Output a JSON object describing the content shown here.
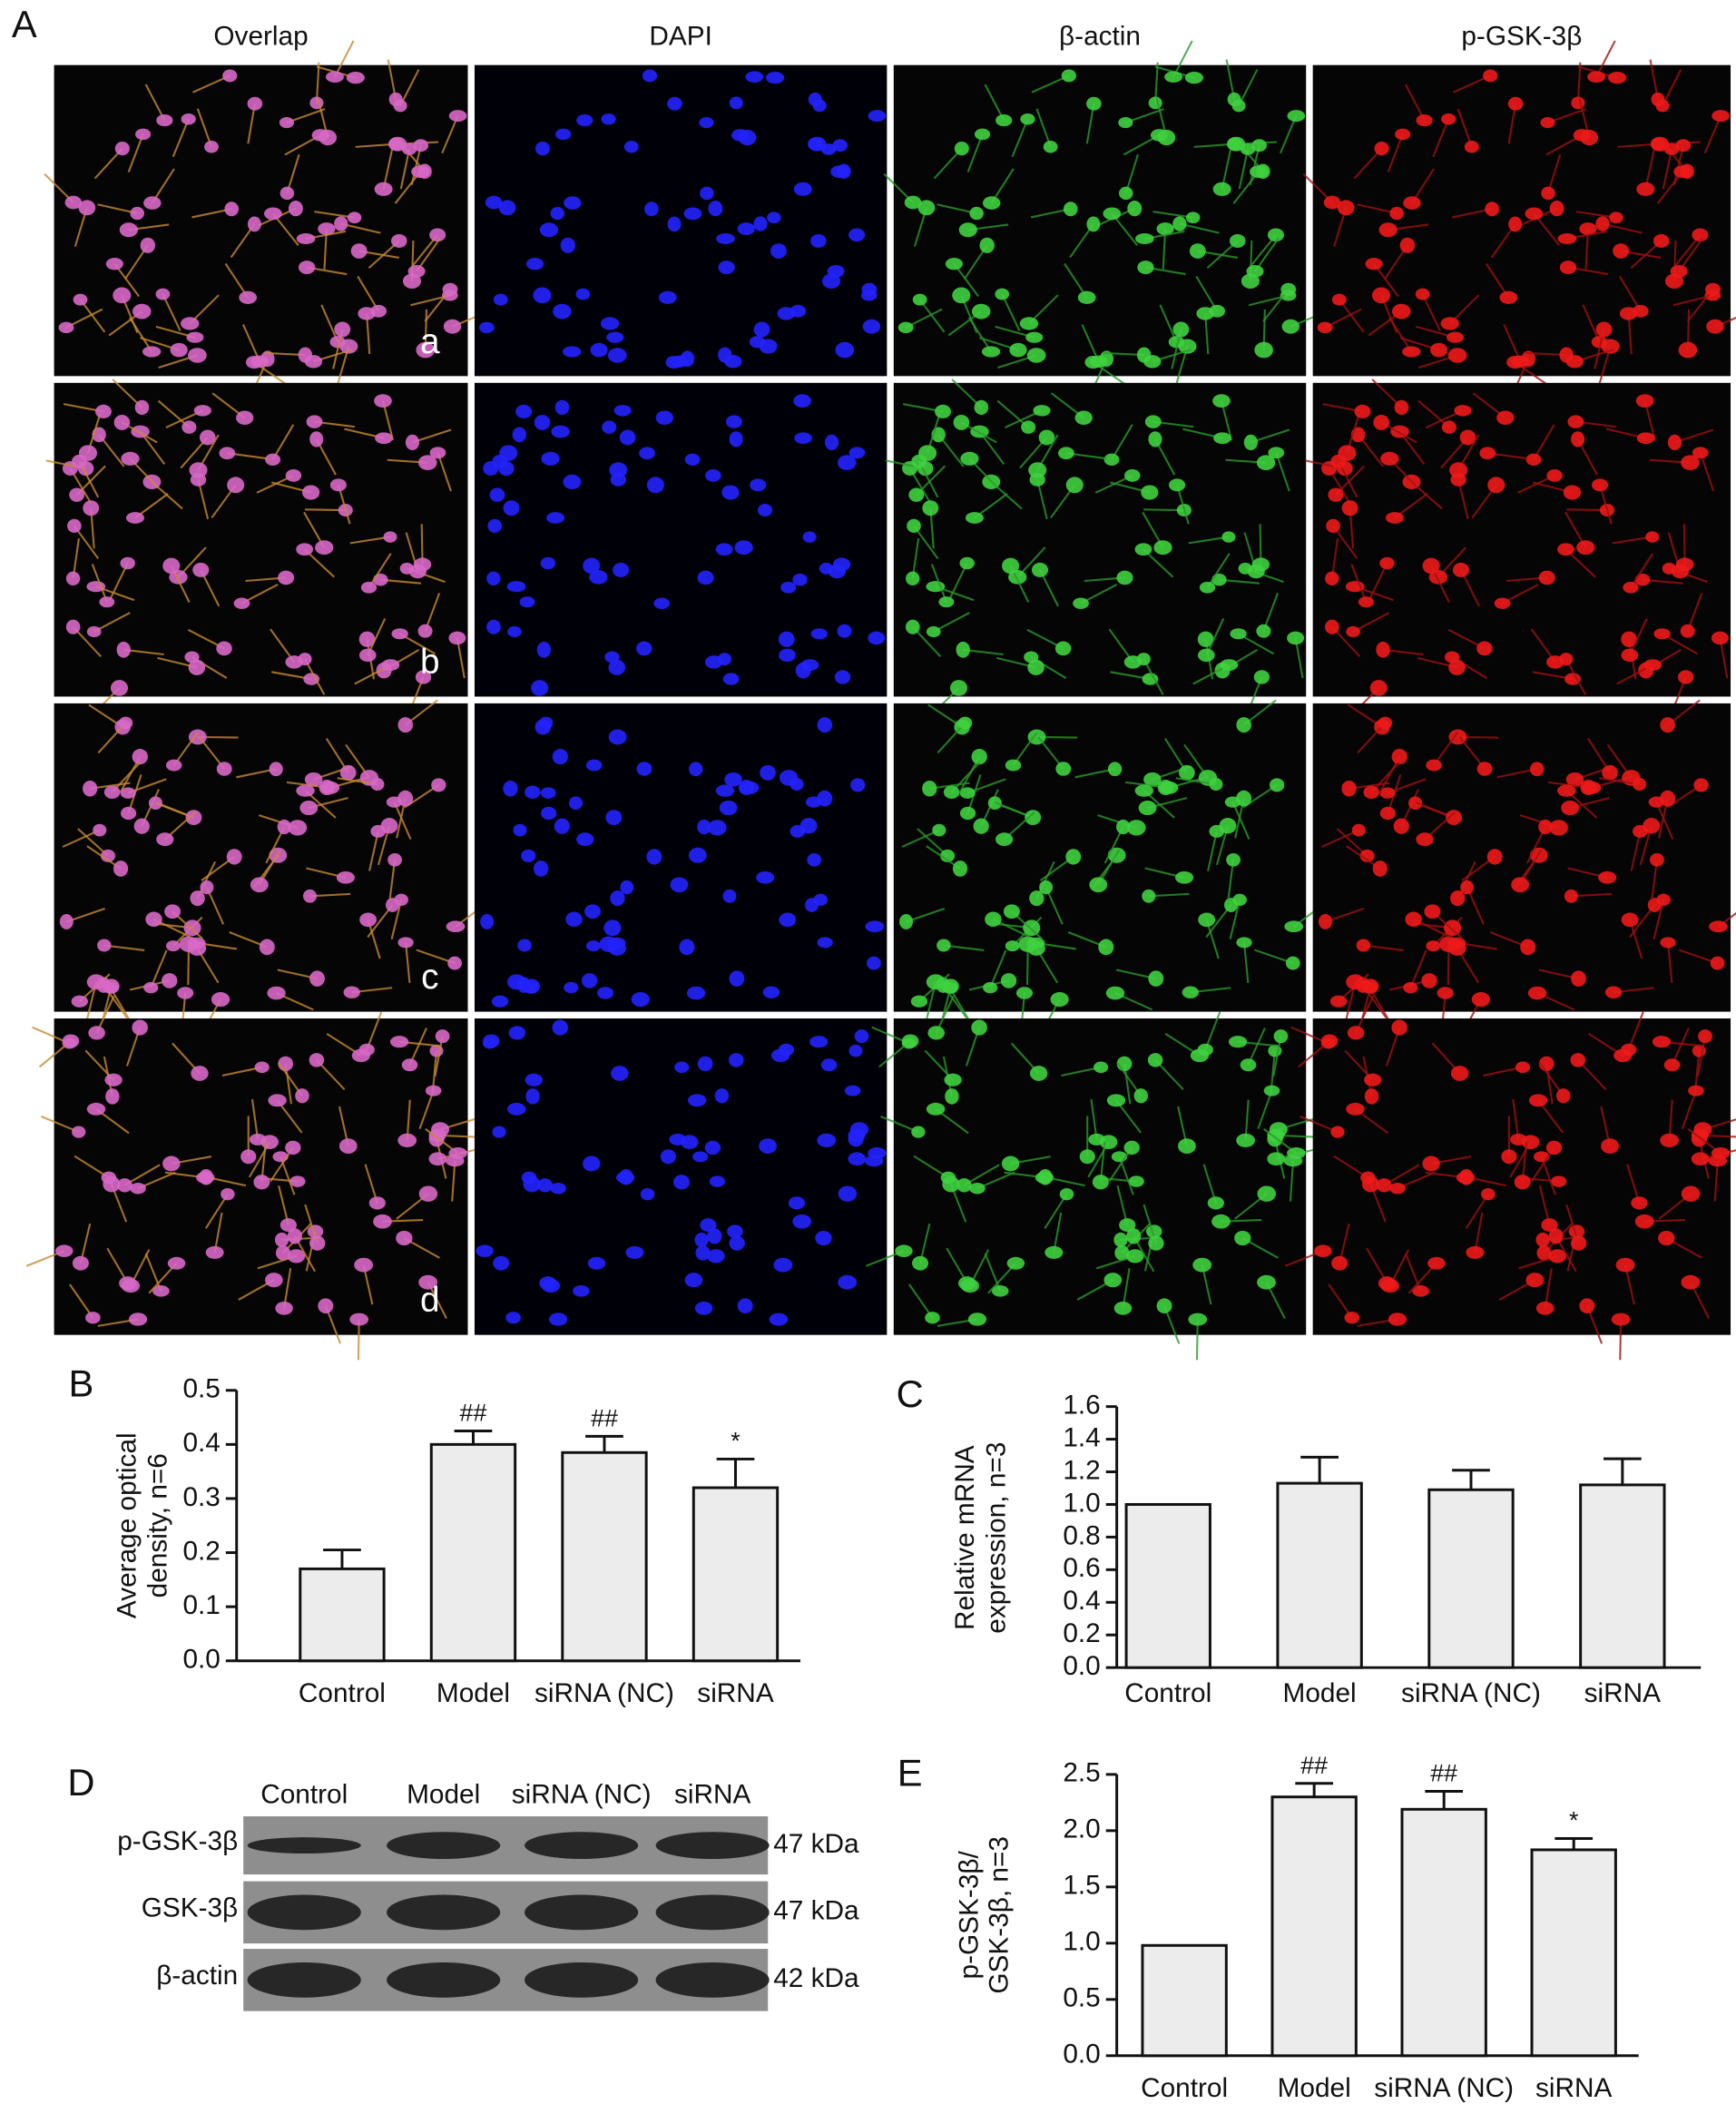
{
  "panel_labels": [
    "A",
    "B",
    "C",
    "D",
    "E"
  ],
  "panel_a": {
    "columns": [
      "Overlap",
      "DAPI",
      "β-actin",
      "p-GSK-3β"
    ],
    "rows": [
      "a",
      "b",
      "c",
      "d"
    ]
  },
  "panel_d": {
    "lanes": [
      "Control",
      "Model",
      "siRNA (NC)",
      "siRNA"
    ],
    "rows": [
      {
        "label": "p-GSK-3β",
        "size": "47 kDa"
      },
      {
        "label": "GSK-3β",
        "size": "47 kDa"
      },
      {
        "label": "β-actin",
        "size": "42 kDa"
      }
    ]
  },
  "chart_data": [
    {
      "type": "bar",
      "ylabel": [
        "Average optical",
        "density, n=6"
      ],
      "categories": [
        "Control",
        "Model",
        "siRNA (NC)",
        "siRNA"
      ],
      "values": [
        0.17,
        0.4,
        0.385,
        0.32
      ],
      "errors": [
        0.035,
        0.025,
        0.03,
        0.053
      ],
      "annotations": [
        null,
        "##",
        "##",
        "*"
      ],
      "color": "#ececec",
      "ylim": [
        0,
        0.5
      ],
      "yticks": [
        {
          "value": 0,
          "label": "0.0"
        },
        0.1,
        0.2,
        0.3,
        0.4,
        0.5
      ]
    },
    {
      "type": "bar",
      "ylabel": [
        "Relative mRNA",
        "expression, n=3"
      ],
      "categories": [
        "Control",
        "Model",
        "siRNA (NC)",
        "siRNA"
      ],
      "values": [
        1.0,
        1.13,
        1.09,
        1.12
      ],
      "errors": [
        0,
        0.16,
        0.12,
        0.16
      ],
      "color": "#ececec",
      "ylim": [
        0,
        1.6
      ],
      "yticks": [
        {
          "value": 0,
          "label": "0.0"
        },
        0.2,
        0.4,
        0.6,
        0.8,
        {
          "value": 1,
          "label": "1.0"
        },
        1.2,
        1.4,
        1.6
      ]
    },
    {
      "type": "bar",
      "ylabel": [
        "p-GSK-3β/",
        "GSK-3β, n=3"
      ],
      "categories": [
        "Control",
        "Model",
        "siRNA (NC)",
        "siRNA"
      ],
      "values": [
        0.98,
        2.3,
        2.19,
        1.83
      ],
      "errors": [
        0,
        0.12,
        0.16,
        0.1
      ],
      "annotations": [
        null,
        "##",
        "##",
        "*"
      ],
      "color": "#ececec",
      "ylim": [
        0,
        2.5
      ],
      "yticks": [
        {
          "value": 0,
          "label": "0.0"
        },
        0.5,
        {
          "value": 1,
          "label": "1.0"
        },
        1.5,
        {
          "value": 2,
          "label": "2.0"
        },
        2.5
      ]
    }
  ]
}
